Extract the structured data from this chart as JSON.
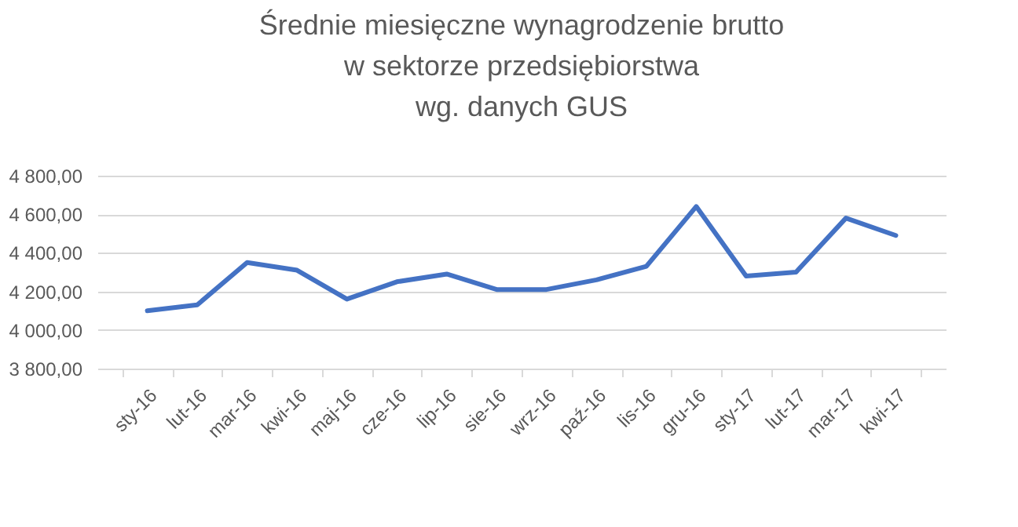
{
  "chart_data": {
    "type": "line",
    "title": "Średnie miesięczne wynagrodzenie brutto\nw sektorze przedsiębiorstwa\nwg. danych GUS",
    "categories": [
      "sty-16",
      "lut-16",
      "mar-16",
      "kwi-16",
      "maj-16",
      "cze-16",
      "lip-16",
      "sie-16",
      "wrz-16",
      "paź-16",
      "lis-16",
      "gru-16",
      "sty-17",
      "lut-17",
      "mar-17",
      "kwi-17"
    ],
    "series": [
      {
        "color": "#4472c4",
        "values": [
          4100,
          4130,
          4350,
          4310,
          4160,
          4250,
          4290,
          4210,
          4210,
          4260,
          4330,
          4640,
          4280,
          4300,
          4580,
          4490
        ]
      }
    ],
    "ylim": [
      3800,
      4800
    ],
    "yticks": [
      {
        "value": 3800,
        "label": "3 800,00"
      },
      {
        "value": 4000,
        "label": "4 000,00"
      },
      {
        "value": 4200,
        "label": "4 200,00"
      },
      {
        "value": 4400,
        "label": "4 400,00"
      },
      {
        "value": 4600,
        "label": "4 600,00"
      },
      {
        "value": 4800,
        "label": "4 800,00"
      }
    ],
    "grid": "y",
    "marker": "none",
    "line_style": "solid"
  }
}
